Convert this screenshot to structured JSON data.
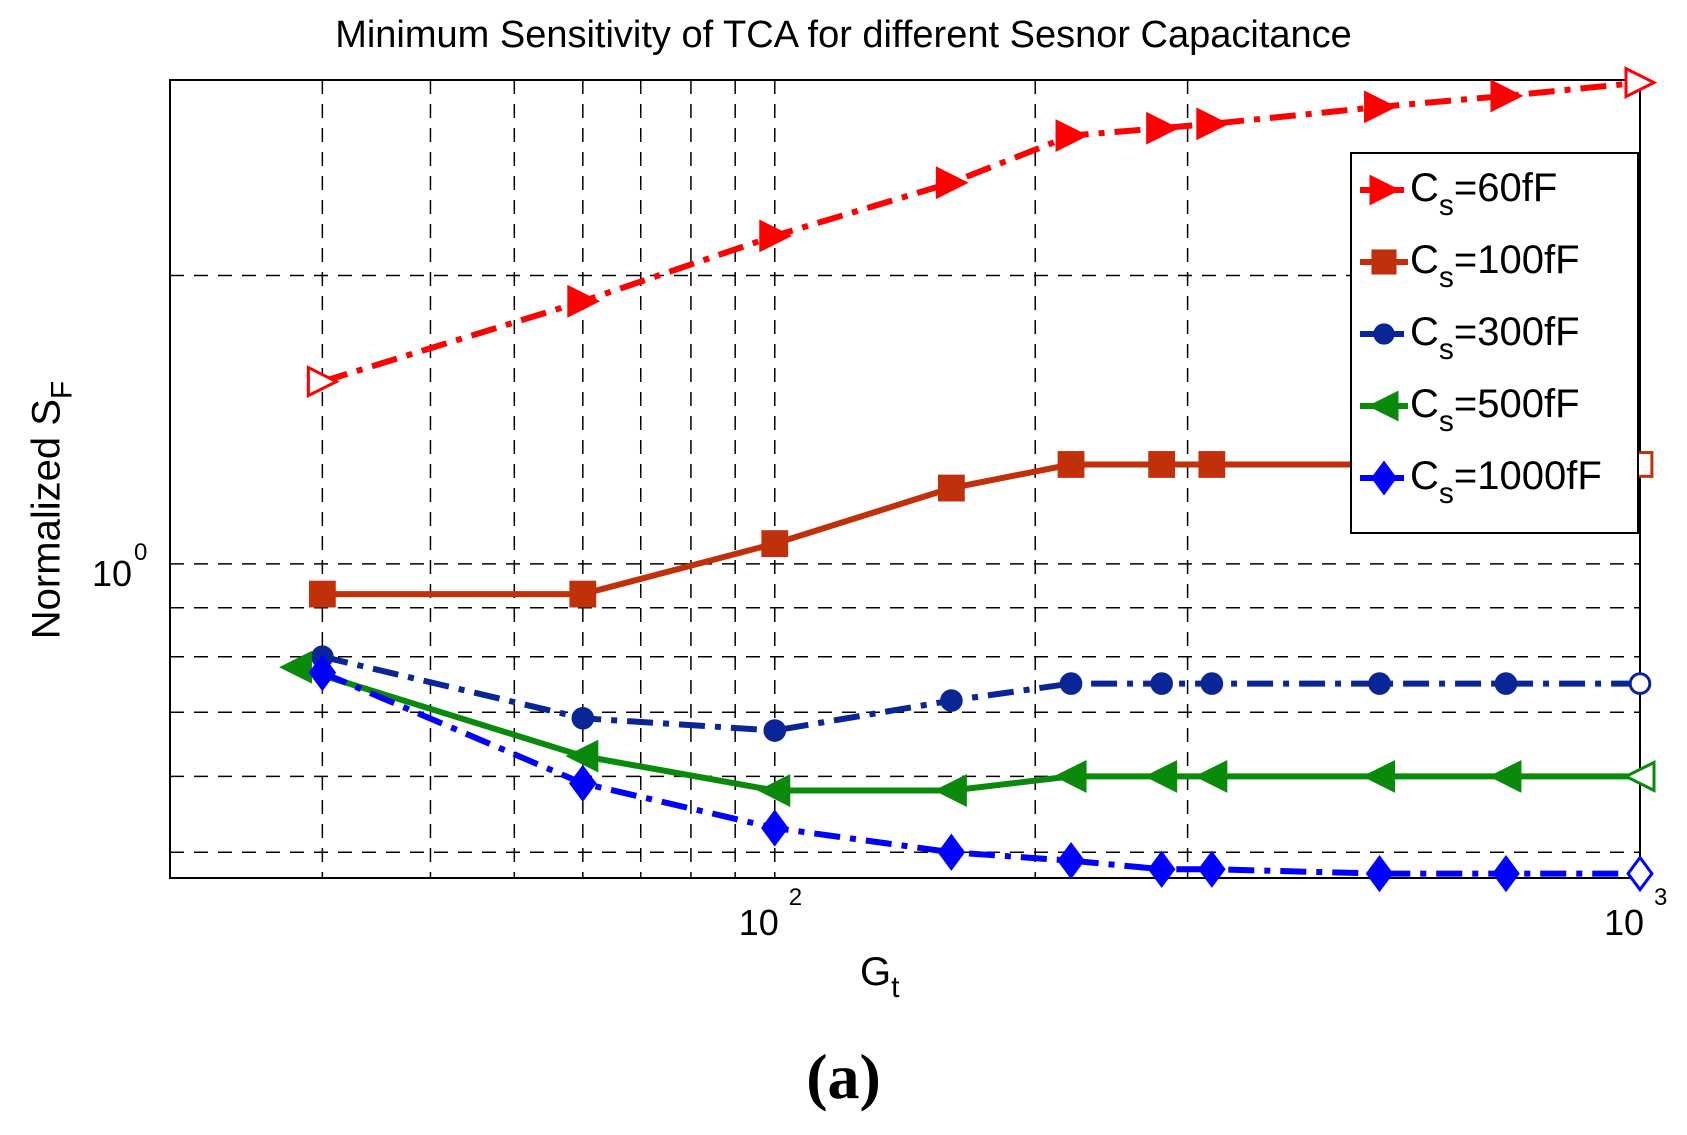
{
  "chart_data": {
    "type": "line",
    "title": "Minimum Sensitivity of TCA for different Sesnor Capacitance",
    "xlabel": {
      "main": "G",
      "sub": "t"
    },
    "ylabel": {
      "main": "Normalized S",
      "sub": "F"
    },
    "xscale": "log",
    "yscale": "log",
    "xlim": [
      20,
      1000
    ],
    "ylim": [
      0.47,
      3.2
    ],
    "x_tick_labels": [
      {
        "value": 100,
        "base": "10",
        "exp": "2"
      },
      {
        "value": 1000,
        "base": "10",
        "exp": "3"
      }
    ],
    "y_tick_labels": [
      {
        "value": 1,
        "base": "10",
        "exp": "0"
      }
    ],
    "x_gridlines": [
      30,
      40,
      50,
      60,
      70,
      80,
      90,
      100,
      200,
      300,
      1000
    ],
    "y_gridlines": [
      0.5,
      0.6,
      0.7,
      0.8,
      0.9,
      1.0,
      2.0
    ],
    "legend_position": "top-right",
    "series": [
      {
        "name": "C_s=60fF",
        "label_main": "C",
        "label_sub": "s",
        "label_rest": "=60fF",
        "color": "#ff0000",
        "marker": "triangle-right",
        "linestyle": "dashdot",
        "x": [
          30,
          60,
          100,
          160,
          220,
          280,
          320,
          500,
          700,
          1000
        ],
        "y": [
          1.55,
          1.88,
          2.2,
          2.5,
          2.8,
          2.85,
          2.88,
          3.0,
          3.08,
          3.18
        ]
      },
      {
        "name": "C_s=100fF",
        "label_main": "C",
        "label_sub": "s",
        "label_rest": "=100fF",
        "color": "#c0300a",
        "marker": "square",
        "linestyle": "solid",
        "x": [
          30,
          60,
          100,
          160,
          220,
          280,
          320,
          1000
        ],
        "y": [
          0.93,
          0.93,
          1.05,
          1.2,
          1.27,
          1.27,
          1.27,
          1.27
        ]
      },
      {
        "name": "C_s=300fF",
        "label_main": "C",
        "label_sub": "s",
        "label_rest": "=300fF",
        "color": "#0a2596",
        "marker": "circle",
        "linestyle": "dashdot",
        "x": [
          30,
          60,
          100,
          160,
          220,
          280,
          320,
          500,
          700,
          1000
        ],
        "y": [
          0.8,
          0.69,
          0.67,
          0.72,
          0.75,
          0.75,
          0.75,
          0.75,
          0.75,
          0.75
        ]
      },
      {
        "name": "C_s=500fF",
        "label_main": "C",
        "label_sub": "s",
        "label_rest": "=500fF",
        "color": "#0a8a0a",
        "marker": "triangle-left",
        "linestyle": "solid",
        "x": [
          28,
          60,
          100,
          160,
          220,
          280,
          320,
          500,
          700,
          1000
        ],
        "y": [
          0.78,
          0.63,
          0.58,
          0.58,
          0.6,
          0.6,
          0.6,
          0.6,
          0.6,
          0.6
        ]
      },
      {
        "name": "C_s=1000fF",
        "label_main": "C",
        "label_sub": "s",
        "label_rest": "=1000fF",
        "color": "#0000ff",
        "marker": "diamond",
        "linestyle": "dashdot",
        "x": [
          30,
          60,
          100,
          160,
          220,
          280,
          320,
          500,
          700,
          1000
        ],
        "y": [
          0.77,
          0.59,
          0.53,
          0.5,
          0.49,
          0.48,
          0.48,
          0.475,
          0.475,
          0.475
        ]
      }
    ]
  },
  "caption": "(a)"
}
